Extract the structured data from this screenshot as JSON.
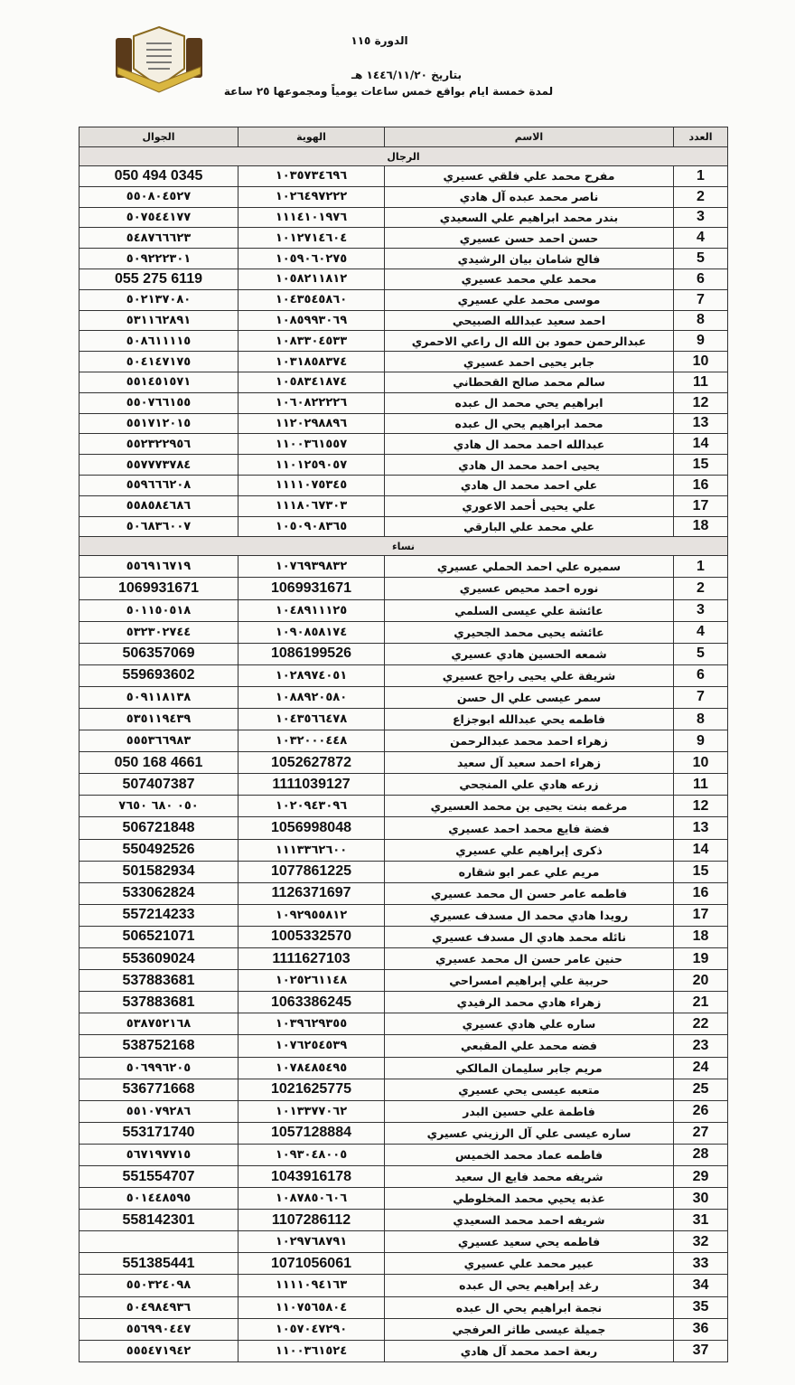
{
  "header": {
    "course": "الدورة ١١٥",
    "date": "بتاريخ ١٤٤٦/١١/٢٠ هـ",
    "duration": "لمدة خمسة ايام بواقع خمس ساعات يومياً ومجموعها ٢٥ ساعة",
    "logo_icon": "association-crest-logo"
  },
  "table": {
    "columns": {
      "number": "العدد",
      "name": "الاسم",
      "id": "الهوية",
      "phone": "الجوال"
    },
    "men_label": "الرجال",
    "women_label": "نساء",
    "men": [
      {
        "n": "1",
        "name": "مفرح محمد علي فلقي عسيري",
        "id": "١٠٣٥٧٣٤٦٩٦",
        "phone": "050 494 0345"
      },
      {
        "n": "2",
        "name": "ناصر محمد عبده آل هادي",
        "id": "١٠٢٦٤٩٧٢٢٢",
        "phone": "٥٥٠٨٠٤٥٢٧"
      },
      {
        "n": "3",
        "name": "بندر محمد ابراهيم علي السعيدي",
        "id": "١١١٤١٠١٩٧٦",
        "phone": "٥٠٧٥٤٤١٧٧"
      },
      {
        "n": "4",
        "name": "حسن احمد حسن عسيري",
        "id": "١٠١٢٧١٤٦٠٤",
        "phone": "٥٤٨٧٦٦٦٢٣"
      },
      {
        "n": "5",
        "name": "فالح شامان بيان الرشيدي",
        "id": "١٠٥٩٠٦٠٢٧٥",
        "phone": "٥٠٩٢٢٢٣٠١"
      },
      {
        "n": "6",
        "name": "محمد علي محمد عسيري",
        "id": "١٠٥٨٢١١٨١٢",
        "phone": "055 275 6119"
      },
      {
        "n": "7",
        "name": "موسى محمد علي عسيري",
        "id": "١٠٤٣٥٤٥٨٦٠",
        "phone": "٥٠٢١٣٧٠٨٠"
      },
      {
        "n": "8",
        "name": "احمد سعيد عبدالله الصبيحي",
        "id": "١٠٨٥٩٩٣٠٦٩",
        "phone": "٥٣١١٦٢٨٩١"
      },
      {
        "n": "9",
        "name": "عبدالرحمن حمود بن الله ال راعي الاحمري",
        "id": "١٠٨٣٣٠٤٥٣٣",
        "phone": "٥٠٨٦١١١١٥"
      },
      {
        "n": "10",
        "name": "جابر يحيى احمد عسيري",
        "id": "١٠٣١٨٥٨٣٧٤",
        "phone": "٥٠٤١٤٧١٧٥"
      },
      {
        "n": "11",
        "name": "سالم محمد صالح القحطاني",
        "id": "١٠٥٨٣٤١٨٧٤",
        "phone": "٥٥١٤٥١٥٧١"
      },
      {
        "n": "12",
        "name": "ابراهيم يحي محمد ال عبده",
        "id": "١٠٦٠٨٢٢٢٢٦",
        "phone": "٥٥٠٧٦٦١٥٥"
      },
      {
        "n": "13",
        "name": "محمد ابراهيم يحي ال عبده",
        "id": "١١٢٠٢٩٨٨٩٦",
        "phone": "٥٥١٧١٢٠١٥"
      },
      {
        "n": "14",
        "name": "عبدالله احمد محمد ال هادي",
        "id": "١١٠٠٣٦١٥٥٧",
        "phone": "٥٥٢٣٢٢٩٥٦"
      },
      {
        "n": "15",
        "name": "يحيى احمد محمد ال هادي",
        "id": "١١٠١٢٥٩٠٥٧",
        "phone": "٥٥٧٧٧٣٧٨٤"
      },
      {
        "n": "16",
        "name": "علي احمد محمد ال هادي",
        "id": "١١١١٠٧٥٣٤٥",
        "phone": "٥٥٩٦٦٦٢٠٨"
      },
      {
        "n": "17",
        "name": "علي يحيى أحمد الاعوري",
        "id": "١١١٨٠٦٧٣٠٣",
        "phone": "٥٥٨٥٨٤٦٨٦"
      },
      {
        "n": "18",
        "name": "علي محمد علي البارقي",
        "id": "١٠٥٠٩٠٨٣٦٥",
        "phone": "٥٠٦٨٣٦٠٠٧"
      }
    ],
    "women": [
      {
        "n": "1",
        "name": "سميره علي احمد الحملي عسيري",
        "id": "١٠٧٦٩٣٩٨٣٢",
        "phone": "٥٥٦٩١٦٧١٩"
      },
      {
        "n": "2",
        "name": "نوره احمد محيص عسيري",
        "id": "1069931671",
        "phone": "1069931671"
      },
      {
        "n": "3",
        "name": "عائشة علي عيسى السلمي",
        "id": "١٠٤٨٩١١١٢٥",
        "phone": "٥٠١١٥٠٥١٨"
      },
      {
        "n": "4",
        "name": "عائشه يحيى محمد الجحيري",
        "id": "١٠٩٠٨٥٨١٧٤",
        "phone": "٥٣٢٣٠٢٧٤٤"
      },
      {
        "n": "5",
        "name": "شمعه الحسين هادي عسيري",
        "id": "1086199526",
        "phone": "506357069"
      },
      {
        "n": "6",
        "name": "شريفة علي يحيى راجح عسيري",
        "id": "١٠٢٨٩٧٤٠٥١",
        "phone": "559693602"
      },
      {
        "n": "7",
        "name": "سمر عيسى علي ال حسن",
        "id": "١٠٨٨٩٢٠٥٨٠",
        "phone": "٥٠٩١١٨١٣٨"
      },
      {
        "n": "8",
        "name": "فاطمه يحي عبدالله ابوجزاع",
        "id": "١٠٤٣٥٦٦٤٧٨",
        "phone": "٥٣٥١١٩٤٣٩"
      },
      {
        "n": "9",
        "name": "زهراء احمد محمد عبدالرحمن",
        "id": "١٠٣٢٠٠٠٤٤٨",
        "phone": "٥٥٥٣٦٦٩٨٣"
      },
      {
        "n": "10",
        "name": "زهراء احمد سعيد آل سعيد",
        "id": "1052627872",
        "phone": "050 168 4661"
      },
      {
        "n": "11",
        "name": "زرعه هادي علي المنجحي",
        "id": "1111039127",
        "phone": "507407387"
      },
      {
        "n": "12",
        "name": "مرغمه بنت يحيى بن محمد العسيري",
        "id": "١٠٢٠٩٤٣٠٩٦",
        "phone": "٠٥٠ ٦٨٠ ٧٦٥٠"
      },
      {
        "n": "13",
        "name": "فضة فايع محمد احمد عسيري",
        "id": "1056998048",
        "phone": "506721848"
      },
      {
        "n": "14",
        "name": "ذكرى إبراهيم علي عسيري",
        "id": "١١١٣٣٦٢٦٠٠",
        "phone": "550492526"
      },
      {
        "n": "15",
        "name": "مريم علي عمر ابو شقاره",
        "id": "1077861225",
        "phone": "501582934"
      },
      {
        "n": "16",
        "name": "فاطمه عامر حسن ال محمد عسيري",
        "id": "1126371697",
        "phone": "533062824"
      },
      {
        "n": "17",
        "name": "رويدا هادي محمد ال مسدف عسيري",
        "id": "١٠٩٢٩٥٥٨١٢",
        "phone": "557214233"
      },
      {
        "n": "18",
        "name": "نائله محمد هادي ال مسدف عسيري",
        "id": "1005332570",
        "phone": "506521071"
      },
      {
        "n": "19",
        "name": "حنين عامر حسن ال محمد عسيري",
        "id": "1111627103",
        "phone": "553609024"
      },
      {
        "n": "20",
        "name": "حربية علي إبراهيم امسراحي",
        "id": "١٠٢٥٢٦١١٤٨",
        "phone": "537883681"
      },
      {
        "n": "21",
        "name": "زهراء هادي محمد الرفيدي",
        "id": "1063386245",
        "phone": "537883681"
      },
      {
        "n": "22",
        "name": "ساره علي هادي عسيري",
        "id": "١٠٣٩٦٢٩٣٥٥",
        "phone": "٥٣٨٧٥٢١٦٨"
      },
      {
        "n": "23",
        "name": "فضه محمد علي المقبعي",
        "id": "١٠٧٦٢٥٤٥٣٩",
        "phone": "538752168"
      },
      {
        "n": "24",
        "name": "مريم جابر سليمان المالكي",
        "id": "١٠٧٨٤٨٥٤٩٥",
        "phone": "٥٠٦٩٩٦٢٠٥"
      },
      {
        "n": "25",
        "name": "متعبه عيسى يحي عسيري",
        "id": "1021625775",
        "phone": "536771668"
      },
      {
        "n": "26",
        "name": "فاطمة علي حسين البدر",
        "id": "١٠١٣٣٧٧٠٦٢",
        "phone": "٥٥١٠٧٩٢٨٦"
      },
      {
        "n": "27",
        "name": "ساره عيسى علي آل الرزيني عسيري",
        "id": "1057128884",
        "phone": "553171740"
      },
      {
        "n": "28",
        "name": "فاطمه عماد محمد الخميس",
        "id": "١٠٩٣٠٤٨٠٠٥",
        "phone": "٥٦٧١٩٧٧١٥"
      },
      {
        "n": "29",
        "name": "شريفه محمد فايع ال سعيد",
        "id": "1043916178",
        "phone": "551554707"
      },
      {
        "n": "30",
        "name": "عذبه يحيي محمد المخلوطي",
        "id": "١٠٨٧٨٥٠٦٠٦",
        "phone": "٥٠١٤٤٨٥٩٥"
      },
      {
        "n": "31",
        "name": "شريفه احمد محمد السعيدي",
        "id": "1107286112",
        "phone": "558142301"
      },
      {
        "n": "32",
        "name": "فاطمه يحي سعيد عسيري",
        "id": "١٠٢٩٧٦٨٧٩١",
        "phone": ""
      },
      {
        "n": "33",
        "name": "عبير محمد علي عسيري",
        "id": "1071056061",
        "phone": "551385441"
      },
      {
        "n": "34",
        "name": "رغد إبراهيم يحي ال عبده",
        "id": "١١١١٠٩٤١٦٣",
        "phone": "٥٥٠٣٢٤٠٩٨"
      },
      {
        "n": "35",
        "name": "نجمة ابراهيم يحي ال عبده",
        "id": "١١٠٧٥٦٥٨٠٤",
        "phone": "٥٠٤٩٨٤٩٣٦"
      },
      {
        "n": "36",
        "name": "جميلة عيسى طاثر العرفجي",
        "id": "١٠٥٧٠٤٧٢٩٠",
        "phone": "٥٥٦٩٩٠٤٤٧"
      },
      {
        "n": "37",
        "name": "ربعة احمد محمد آل هادي",
        "id": "١١٠٠٣٦١٥٢٤",
        "phone": "٥٥٥٤٧١٩٤٢"
      }
    ]
  }
}
